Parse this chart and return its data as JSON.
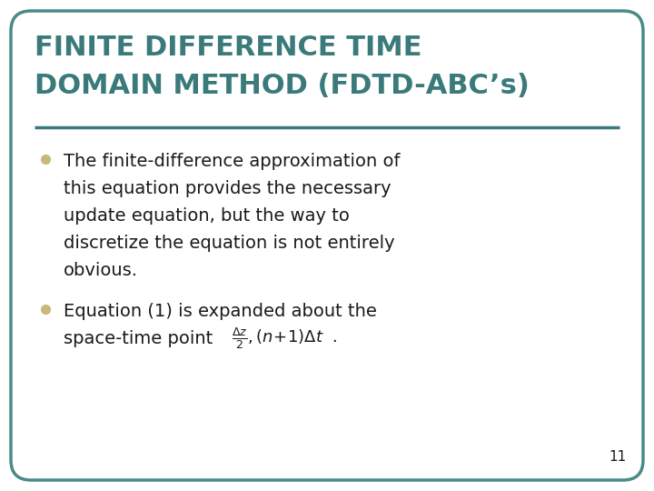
{
  "title_line1": "FINITE DIFFERENCE TIME",
  "title_line2": "DOMAIN METHOD (FDTD-ABC’s)",
  "title_color": "#3a7a7a",
  "background_color": "#ffffff",
  "border_color": "#4a8a8a",
  "bullet_color": "#c8b87a",
  "text_color": "#1a1a1a",
  "line_color": "#3a7a7a",
  "page_number": "11",
  "figsize": [
    7.2,
    5.4
  ],
  "dpi": 100
}
